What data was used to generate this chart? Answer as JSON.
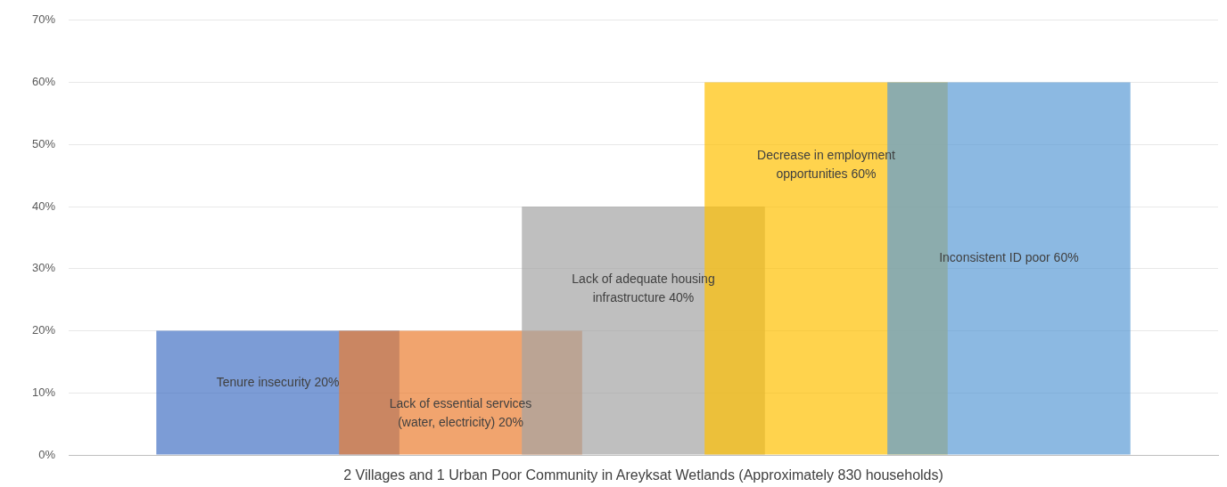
{
  "chart_data": {
    "type": "bar",
    "categories": [
      "2 Villages and 1 Urban Poor Community in Areyksat Wetlands (Approximately 830 households)"
    ],
    "series": [
      {
        "name": "Tenure insecurity",
        "color": "#7c9cd6",
        "values": [
          20
        ],
        "value_labels": [
          "20%"
        ]
      },
      {
        "name": "Lack of essential services (water, electricity)",
        "color": "#f1a56f",
        "values": [
          20
        ],
        "value_labels": [
          "20%"
        ]
      },
      {
        "name": "Lack of adequate housing infrastructure",
        "color": "#bfbfbf",
        "values": [
          40
        ],
        "value_labels": [
          "40%"
        ]
      },
      {
        "name": "Decrease in employment opportunities",
        "color": "#ffd34d",
        "values": [
          60
        ],
        "value_labels": [
          "60%"
        ]
      },
      {
        "name": "Inconsistent ID poor",
        "color": "#8cb9e2",
        "values": [
          60
        ],
        "value_labels": [
          "60%"
        ]
      }
    ],
    "ylim": [
      0,
      70
    ],
    "yticks": [
      {
        "value": 0,
        "label": "0%"
      },
      {
        "value": 10,
        "label": "10%"
      },
      {
        "value": 20,
        "label": "20%"
      },
      {
        "value": 30,
        "label": "30%"
      },
      {
        "value": 40,
        "label": "40%"
      },
      {
        "value": 50,
        "label": "50%"
      },
      {
        "value": 60,
        "label": "60%"
      },
      {
        "value": 70,
        "label": "70%"
      }
    ],
    "grid": "y"
  }
}
